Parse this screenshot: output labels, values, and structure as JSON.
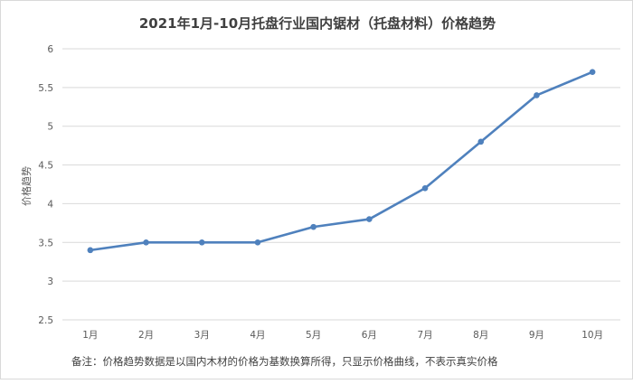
{
  "chart_data": {
    "type": "line",
    "title": "2021年1月-10月托盘行业国内锯材（托盘材料）价格趋势",
    "xlabel": "",
    "ylabel": "价格趋势",
    "categories": [
      "1月",
      "2月",
      "3月",
      "4月",
      "5月",
      "6月",
      "7月",
      "8月",
      "9月",
      "10月"
    ],
    "series": [
      {
        "values": [
          3.4,
          3.5,
          3.5,
          3.5,
          3.7,
          3.8,
          4.2,
          4.8,
          5.4,
          5.7
        ]
      }
    ],
    "ylim": [
      2.5,
      6
    ],
    "yticks": [
      "2.5",
      "3",
      "3.5",
      "4",
      "4.5",
      "5",
      "5.5",
      "6"
    ],
    "grid": true,
    "legend": "none",
    "footnote": "备注：价格趋势数据是以国内木材的价格为基数换算所得，只显示价格曲线，不表示真实价格",
    "colors": {
      "line": "#4f81bd",
      "grid": "#d9d9d9",
      "text": "#595959",
      "title": "#404040"
    }
  }
}
